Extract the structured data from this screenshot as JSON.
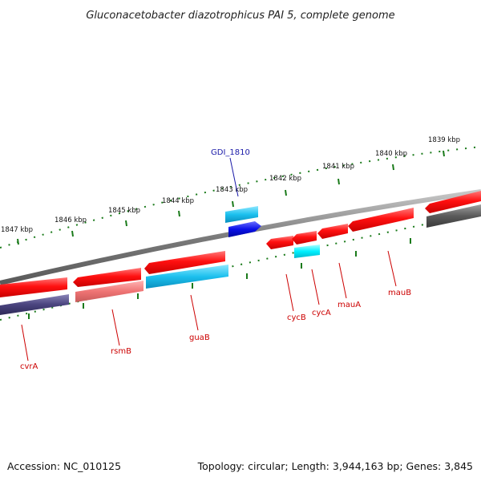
{
  "title": "Gluconacetobacter diazotrophicus PAI 5, complete genome",
  "footer": {
    "accession": "Accession: NC_010125",
    "topology": "Topology: circular; Length: 3,944,163 bp; Genes: 3,845"
  },
  "scale_labels": [
    "1839 kbp",
    "1840 kbp",
    "1841 kbp",
    "1842 kbp",
    "1843 kbp",
    "1844 kbp",
    "1845 kbp",
    "1846 kbp",
    "1847 kbp"
  ],
  "gene_labels": [
    "GDI_1810",
    "cvrA",
    "rsmB",
    "guaB",
    "cycB",
    "cycA",
    "mauA",
    "mauB"
  ],
  "colors": {
    "backbone": "#8a8a8a",
    "forward_red": "#ff1a1a",
    "light_red": "#f07c7c",
    "cyan": "#22c4ee",
    "blue": "#0a10e8",
    "dark_indigo": "#4a447e",
    "dark_gray": "#5a5a5a",
    "tick_green": "#1a7a1a",
    "label_red": "#cc0000",
    "label_blue": "#1a1aa8"
  }
}
